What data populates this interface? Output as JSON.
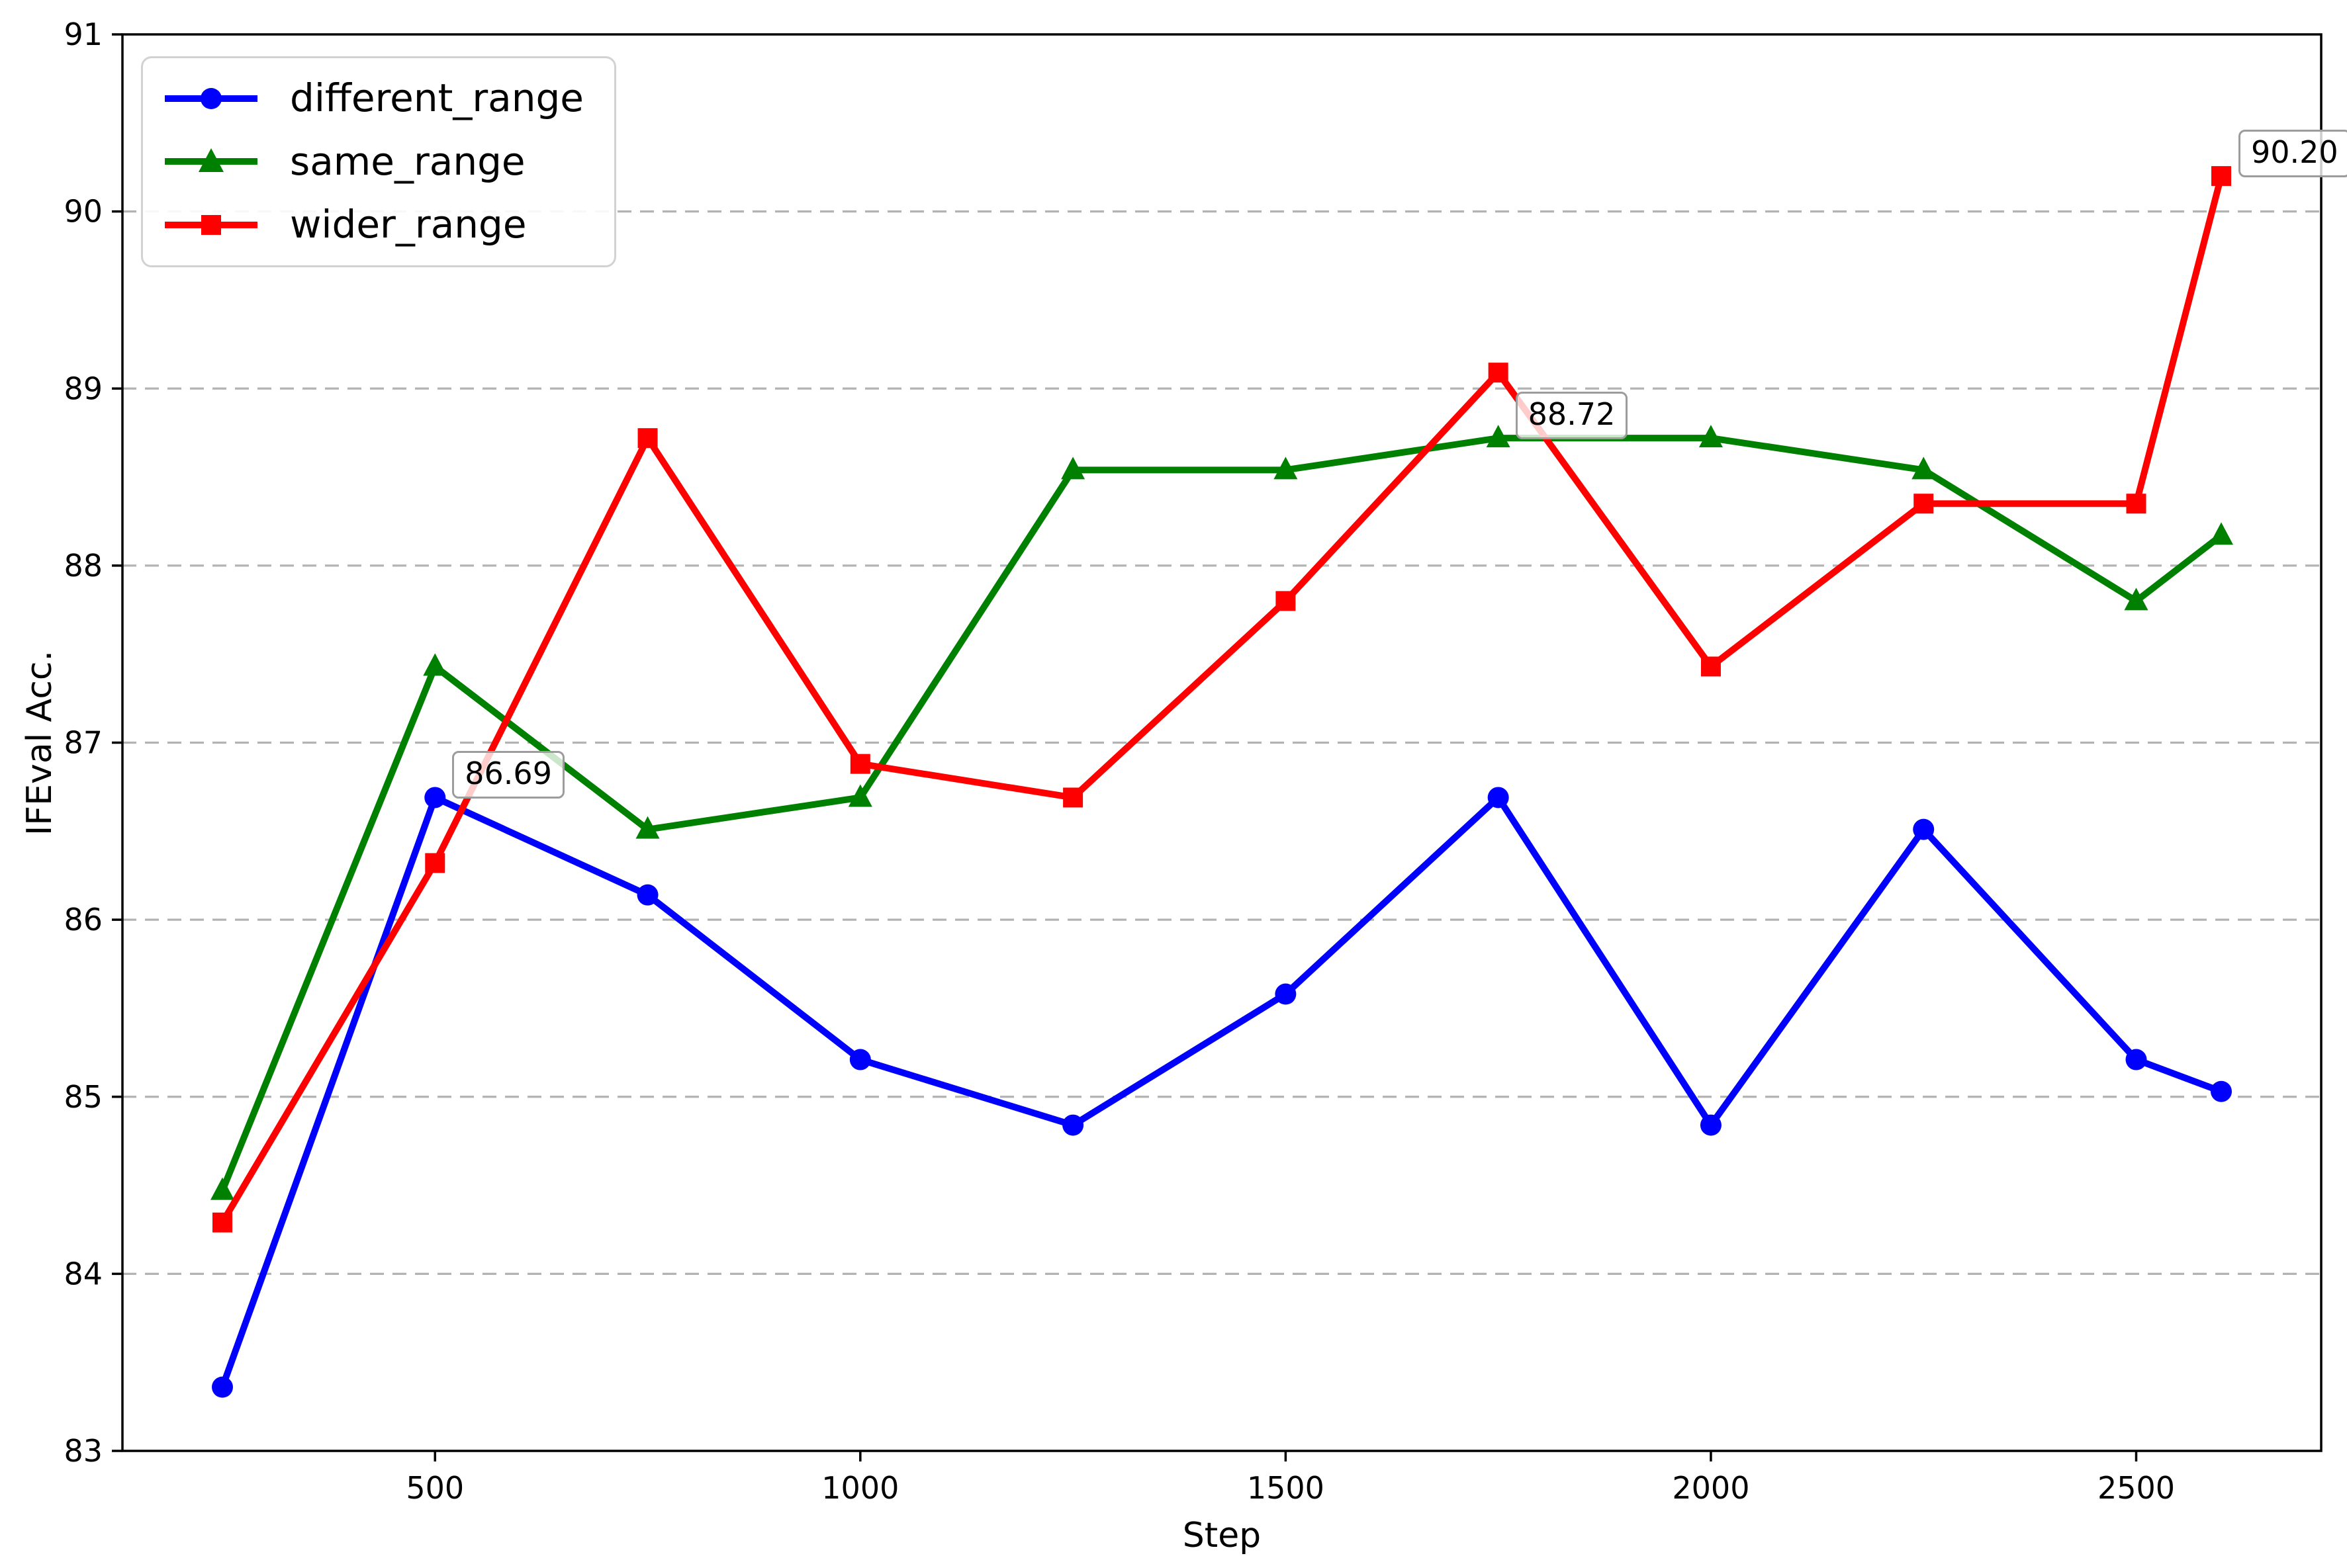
{
  "figure": {
    "background": "#ffffff"
  },
  "axes": {
    "xlabel": "Step",
    "ylabel": "IFEval Acc.",
    "xticks": [
      500,
      1000,
      1500,
      2000,
      2500
    ],
    "yticks": [
      83,
      84,
      85,
      86,
      87,
      88,
      89,
      90,
      91
    ],
    "xlim": [
      132.5,
      2717.5
    ],
    "ylim": [
      83,
      91
    ],
    "grid": {
      "axis": "y",
      "style": "dashed",
      "color": "#b3b3b3"
    },
    "spine_color": "#000000"
  },
  "legend": {
    "position": "upper-left",
    "items": [
      {
        "label": "different_range",
        "color": "#0000ff",
        "marker": "circle"
      },
      {
        "label": "same_range",
        "color": "#008000",
        "marker": "triangle-up"
      },
      {
        "label": "wider_range",
        "color": "#ff0000",
        "marker": "square"
      }
    ]
  },
  "chart_data": {
    "type": "line",
    "title": "",
    "xlabel": "Step",
    "ylabel": "IFEval Acc.",
    "xlim": [
      132.5,
      2717.5
    ],
    "ylim": [
      83,
      91
    ],
    "legend_position": "upper-left",
    "grid": "horizontal-dashed",
    "x": [
      250,
      500,
      750,
      1000,
      1250,
      1500,
      1750,
      2000,
      2250,
      2500,
      2600
    ],
    "series": [
      {
        "name": "different_range",
        "color": "#0000ff",
        "marker": "circle",
        "values": [
          83.36,
          86.69,
          86.14,
          85.21,
          84.84,
          85.58,
          86.69,
          84.84,
          86.51,
          85.21,
          85.03
        ]
      },
      {
        "name": "same_range",
        "color": "#008000",
        "marker": "triangle-up",
        "values": [
          84.47,
          87.43,
          86.51,
          86.69,
          88.54,
          88.54,
          88.72,
          88.72,
          88.54,
          87.8,
          88.17
        ]
      },
      {
        "name": "wider_range",
        "color": "#ff0000",
        "marker": "square",
        "values": [
          84.29,
          86.32,
          88.72,
          86.88,
          86.69,
          87.8,
          89.09,
          87.43,
          88.35,
          88.35,
          90.2
        ]
      }
    ],
    "annotations": [
      {
        "text": "86.69",
        "x": 500,
        "y": 86.69,
        "series": "different_range"
      },
      {
        "text": "88.72",
        "x": 1750,
        "y": 88.72,
        "series": "same_range"
      },
      {
        "text": "90.20",
        "x": 2600,
        "y": 90.2,
        "series": "wider_range"
      }
    ]
  }
}
